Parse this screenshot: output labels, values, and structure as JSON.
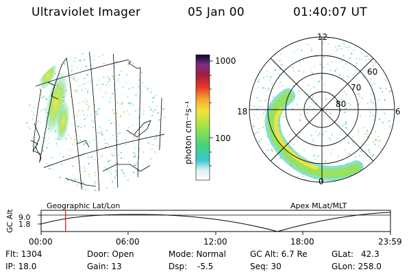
{
  "header": {
    "title": "Ultraviolet Imager",
    "date": "05 Jan 00",
    "time": "01:40:07 UT"
  },
  "colorbar": {
    "unit_label": "photon cm⁻²s⁻¹",
    "ticks": [
      "1000",
      "100"
    ]
  },
  "polar": {
    "lat_labels": [
      "60",
      "70",
      "80"
    ],
    "mlt_labels": [
      "12",
      "18",
      "6",
      "0"
    ]
  },
  "altitude_panel": {
    "left_label": "Geographic Lat/Lon",
    "right_label": "Apex MLat/MLT",
    "ylabel": "GC Alt",
    "yticks": [
      "9.0",
      "1.8"
    ],
    "xticks": [
      "00:00",
      "06:00",
      "12:00",
      "18:00",
      "23:59"
    ],
    "marker_time_fraction": 0.07
  },
  "info": {
    "flt": "Flt: 1304",
    "ip": "IP: 18.0",
    "door": "Door: Open",
    "gain": "Gain: 13",
    "mode": "Mode: Normal",
    "dsp_label": "Dsp:",
    "dsp_value": "-5.5",
    "gcalt": "GC Alt: 6.7 Re",
    "seq": "Seq: 30",
    "glat_label": "GLat:",
    "glat_value": "42.3",
    "glon": "GLon: 258.0"
  },
  "colors": {
    "marker": "#e8262b",
    "aurora_core": "#f5e23a",
    "aurora_mid": "#9be24c",
    "aurora_low": "#28c4b0",
    "noise": "#7fd9c7"
  }
}
